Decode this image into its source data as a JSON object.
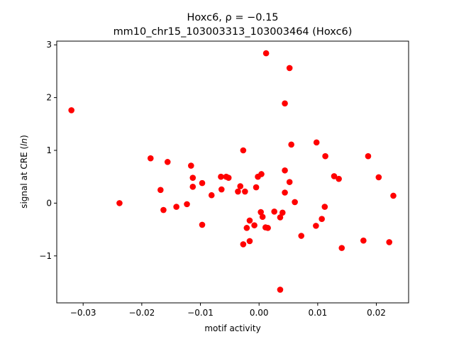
{
  "chart_data": {
    "type": "scatter",
    "title_line1": "Hoxc6, ρ = −0.15",
    "title_line2": "mm10_chr15_103003313_103003464 (Hoxc6)",
    "xlabel": "motif activity",
    "ylabel": "signal at CRE (ln)",
    "xlim": [
      -0.0345,
      0.0255
    ],
    "ylim": [
      -1.89,
      3.07
    ],
    "xticks": [
      -0.03,
      -0.02,
      -0.01,
      0.0,
      0.01,
      0.02
    ],
    "xtick_labels": [
      "−0.03",
      "−0.02",
      "−0.01",
      "0.00",
      "0.01",
      "0.02"
    ],
    "yticks": [
      -1,
      0,
      1,
      2,
      3
    ],
    "ytick_labels": [
      "−1",
      "0",
      "1",
      "2",
      "3"
    ],
    "grid": false,
    "legend": "none",
    "marker_color": "#ff0000",
    "points": [
      {
        "x": -0.032,
        "y": 1.76
      },
      {
        "x": -0.0238,
        "y": 0.0
      },
      {
        "x": -0.0185,
        "y": 0.85
      },
      {
        "x": -0.0168,
        "y": 0.25
      },
      {
        "x": -0.0163,
        "y": -0.13
      },
      {
        "x": -0.0156,
        "y": 0.78
      },
      {
        "x": -0.0141,
        "y": -0.07
      },
      {
        "x": -0.0123,
        "y": -0.02
      },
      {
        "x": -0.0116,
        "y": 0.71
      },
      {
        "x": -0.0113,
        "y": 0.48
      },
      {
        "x": -0.0113,
        "y": 0.31
      },
      {
        "x": -0.0097,
        "y": 0.38
      },
      {
        "x": -0.0097,
        "y": -0.41
      },
      {
        "x": -0.0081,
        "y": 0.15
      },
      {
        "x": -0.0065,
        "y": 0.5
      },
      {
        "x": -0.0064,
        "y": 0.26
      },
      {
        "x": -0.0056,
        "y": 0.5
      },
      {
        "x": -0.0052,
        "y": 0.48
      },
      {
        "x": -0.0036,
        "y": 0.22
      },
      {
        "x": -0.0032,
        "y": 0.32
      },
      {
        "x": -0.0027,
        "y": 1.0
      },
      {
        "x": -0.0027,
        "y": -0.78
      },
      {
        "x": -0.0024,
        "y": 0.22
      },
      {
        "x": -0.0021,
        "y": -0.47
      },
      {
        "x": -0.0016,
        "y": -0.33
      },
      {
        "x": -0.0016,
        "y": -0.72
      },
      {
        "x": -0.0008,
        "y": -0.42
      },
      {
        "x": -0.0005,
        "y": 0.3
      },
      {
        "x": -0.0002,
        "y": 0.5
      },
      {
        "x": 0.0003,
        "y": -0.17
      },
      {
        "x": 0.0004,
        "y": 0.55
      },
      {
        "x": 0.0006,
        "y": -0.26
      },
      {
        "x": 0.0011,
        "y": -0.46
      },
      {
        "x": 0.0012,
        "y": 2.84
      },
      {
        "x": 0.0015,
        "y": -0.47
      },
      {
        "x": 0.0026,
        "y": -0.16
      },
      {
        "x": 0.0036,
        "y": -0.27
      },
      {
        "x": 0.0036,
        "y": -1.64
      },
      {
        "x": 0.004,
        "y": -0.18
      },
      {
        "x": 0.0044,
        "y": 1.89
      },
      {
        "x": 0.0044,
        "y": 0.62
      },
      {
        "x": 0.0044,
        "y": 0.2
      },
      {
        "x": 0.0052,
        "y": 0.4
      },
      {
        "x": 0.0052,
        "y": 2.56
      },
      {
        "x": 0.0055,
        "y": 1.11
      },
      {
        "x": 0.0061,
        "y": 0.02
      },
      {
        "x": 0.0072,
        "y": -0.62
      },
      {
        "x": 0.0097,
        "y": -0.43
      },
      {
        "x": 0.0098,
        "y": 1.15
      },
      {
        "x": 0.0107,
        "y": -0.3
      },
      {
        "x": 0.0112,
        "y": -0.07
      },
      {
        "x": 0.0113,
        "y": 0.89
      },
      {
        "x": 0.0128,
        "y": 0.51
      },
      {
        "x": 0.0136,
        "y": 0.46
      },
      {
        "x": 0.0141,
        "y": -0.85
      },
      {
        "x": 0.0178,
        "y": -0.71
      },
      {
        "x": 0.0186,
        "y": 0.89
      },
      {
        "x": 0.0204,
        "y": 0.49
      },
      {
        "x": 0.0222,
        "y": -0.74
      },
      {
        "x": 0.0229,
        "y": 0.14
      }
    ]
  }
}
